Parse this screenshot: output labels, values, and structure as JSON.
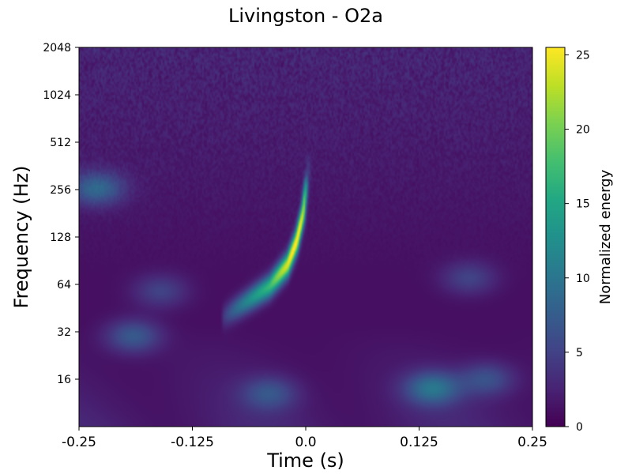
{
  "chart_data": {
    "type": "heatmap",
    "title": "Livingston - O2a",
    "xlabel": "Time (s)",
    "ylabel": "Frequency (Hz)",
    "xlim": [
      -0.25,
      0.25
    ],
    "ylim": [
      8,
      2048
    ],
    "y_scale": "log2",
    "x_ticks": [
      -0.25,
      -0.125,
      0.0,
      0.125,
      0.25
    ],
    "x_tick_labels": [
      "-0.25",
      "-0.125",
      "0.0",
      "0.125",
      "0.25"
    ],
    "y_ticks": [
      16,
      32,
      64,
      128,
      256,
      512,
      1024,
      2048
    ],
    "y_tick_labels": [
      "16",
      "32",
      "64",
      "128",
      "256",
      "512",
      "1024",
      "2048"
    ],
    "colorbar": {
      "label": "Normalized energy",
      "colormap": "viridis",
      "range": [
        0,
        25.5
      ],
      "ticks": [
        0,
        5,
        10,
        15,
        20,
        25
      ],
      "tick_labels": [
        "0",
        "5",
        "10",
        "15",
        "20",
        "25"
      ]
    },
    "features": [
      {
        "kind": "chirp",
        "points": [
          [
            -0.09,
            40
          ],
          [
            -0.04,
            62
          ],
          [
            -0.02,
            85
          ],
          [
            -0.01,
            120
          ],
          [
            -0.003,
            180
          ],
          [
            0.0,
            256
          ],
          [
            0.003,
            340
          ]
        ],
        "peak_energy": 22
      },
      {
        "kind": "blob",
        "t": -0.23,
        "f": 260,
        "energy": 7
      },
      {
        "kind": "blob",
        "t": -0.19,
        "f": 30,
        "energy": 6
      },
      {
        "kind": "blob",
        "t": 0.14,
        "f": 14,
        "energy": 8
      },
      {
        "kind": "blob",
        "t": -0.04,
        "f": 13,
        "energy": 5
      },
      {
        "kind": "blob",
        "t": 0.2,
        "f": 16,
        "energy": 5
      },
      {
        "kind": "blob",
        "t": 0.18,
        "f": 70,
        "energy": 4
      },
      {
        "kind": "blob",
        "t": -0.16,
        "f": 58,
        "energy": 4
      }
    ],
    "grid": false
  }
}
